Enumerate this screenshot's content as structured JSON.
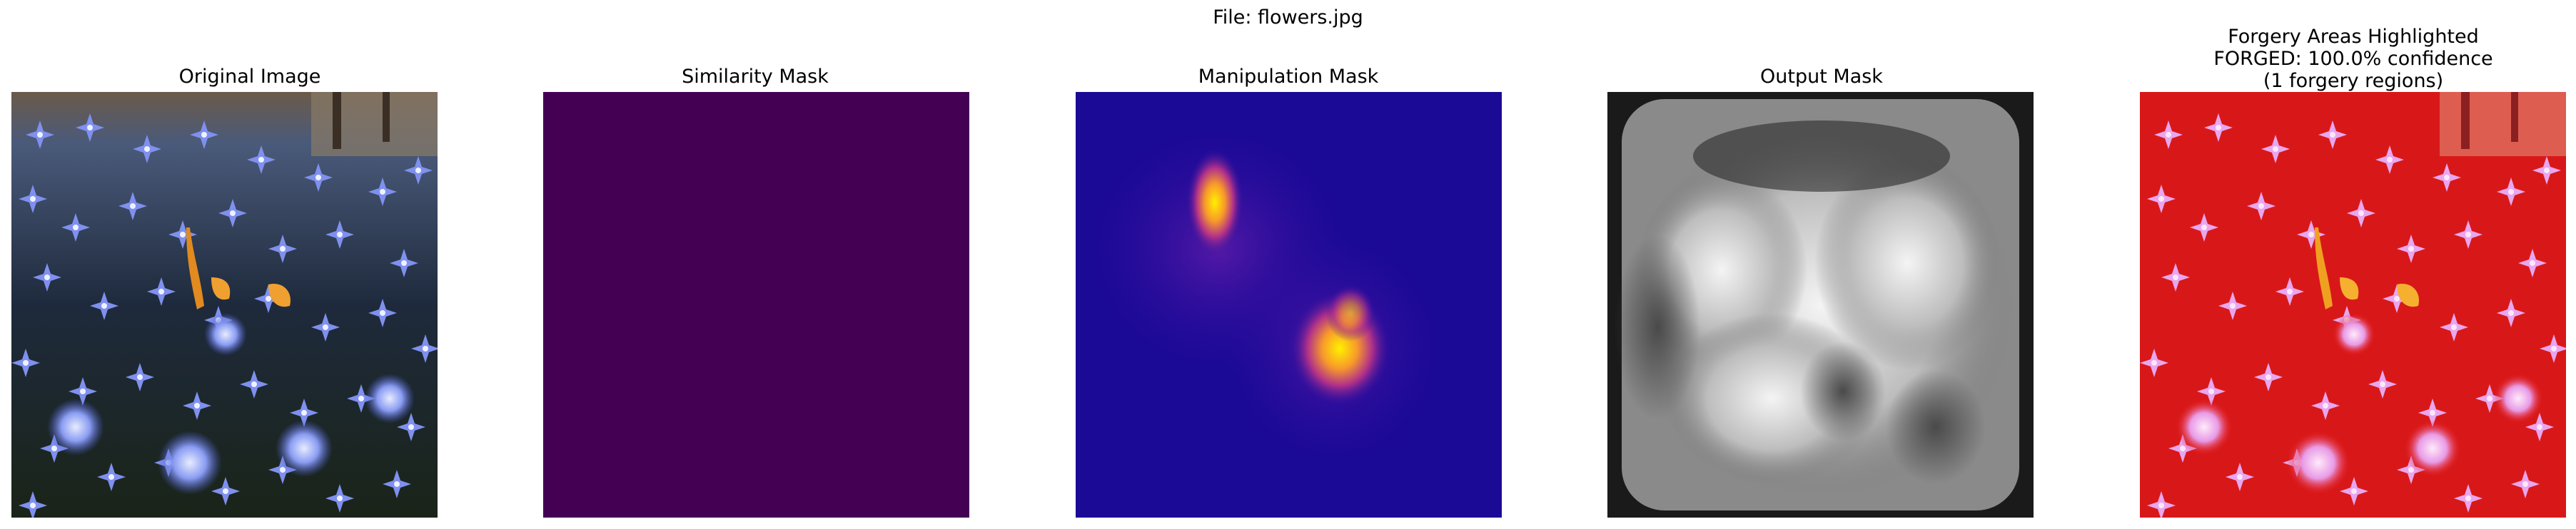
{
  "figure": {
    "suptitle": "File: flowers.jpg"
  },
  "panels": [
    {
      "title": "Original Image",
      "image": "flower-photo"
    },
    {
      "title": "Similarity Mask",
      "image": "uniform-mask",
      "color": "#440154"
    },
    {
      "title": "Manipulation Mask",
      "image": "heatmap"
    },
    {
      "title": "Output Mask",
      "image": "grayscale-mask"
    },
    {
      "title_lines": [
        "Forgery Areas Highlighted",
        "FORGED: 100.0% confidence",
        "(1 forgery regions)"
      ],
      "image": "flower-photo-red-overlay"
    }
  ],
  "colors": {
    "similarity": "#440154",
    "heatmap_low": "#1a0a96",
    "heatmap_high": "#fff000",
    "overlay": "#e41414"
  }
}
